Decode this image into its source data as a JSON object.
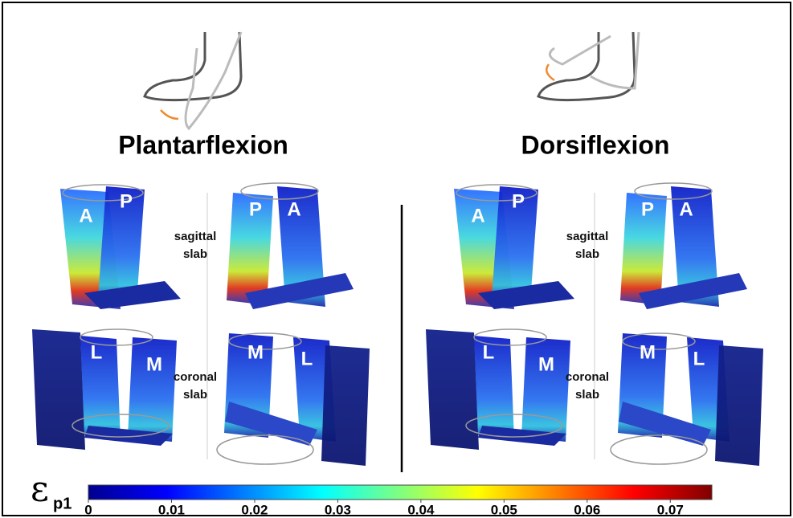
{
  "figure": {
    "panels": [
      {
        "title": "Plantarflexion",
        "labels": [
          "A",
          "P",
          "P",
          "A",
          "L",
          "M",
          "M",
          "L"
        ]
      },
      {
        "title": "Dorsiflexion",
        "labels": [
          "A",
          "P",
          "P",
          "A",
          "L",
          "M",
          "M",
          "L"
        ]
      }
    ],
    "sagittal": [
      "sagittal",
      "slab"
    ],
    "coronal": [
      "coronal",
      "slab"
    ],
    "colorbar": {
      "symbol": "ε",
      "subscript": "p1",
      "lim": [
        0,
        0.075
      ],
      "ticks": [
        0,
        0.01,
        0.02,
        0.03,
        0.04,
        0.05,
        0.06,
        0.07
      ]
    }
  }
}
